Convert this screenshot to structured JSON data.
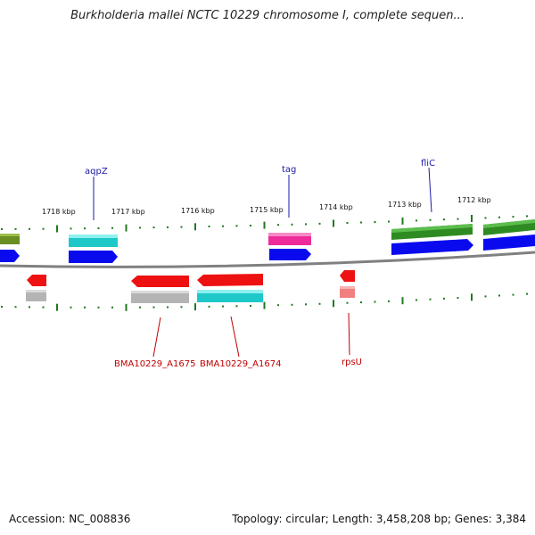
{
  "title": "Burkholderia mallei NCTC 10229 chromosome I, complete sequen...",
  "footer": {
    "accession": "Accession: NC_008836",
    "summary": "Topology: circular; Length: 3,458,208 bp; Genes: 3,384"
  },
  "colors": {
    "backbone": "#808080",
    "tick": "#1f7a1f",
    "label_forward": "#1a1aa8",
    "label_reverse": "#c00000",
    "cds_blue": "#0a0aee",
    "olive": "#6b8e23",
    "cyan": "#1ec8c8",
    "pink": "#ee2b9a",
    "green": "#2e8b22",
    "red": "#ee1111",
    "grey": "#b4b4b4",
    "rrna_pink": "#f08080"
  },
  "scale_labels": [
    "1718 kbp",
    "1717 kbp",
    "1716 kbp",
    "1715 kbp",
    "1714 kbp",
    "1713 kbp",
    "1712 kbp"
  ],
  "gene_labels": {
    "forward": [
      "aqpZ",
      "tag",
      "fliC"
    ],
    "reverse": [
      "BMA10229_A1675",
      "BMA10229_A1674",
      "rpsU"
    ]
  }
}
